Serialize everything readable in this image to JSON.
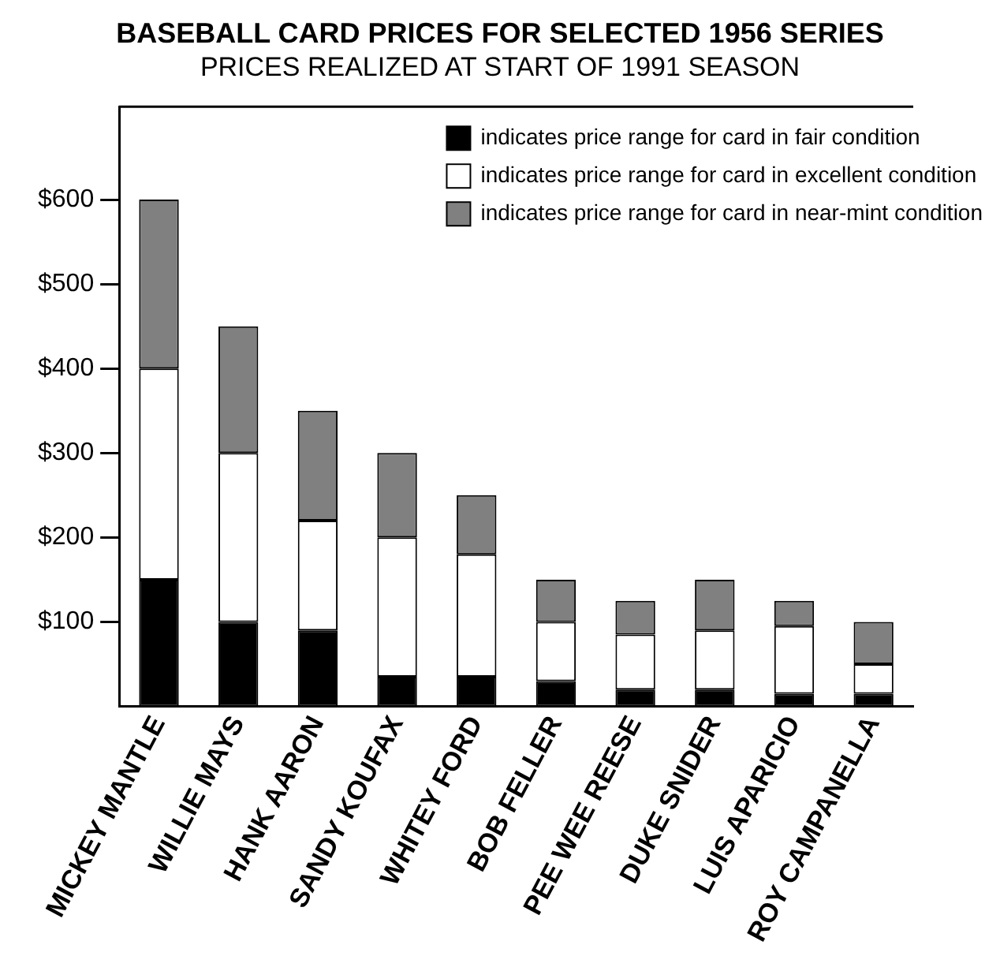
{
  "chart_data": {
    "type": "bar",
    "title": "BASEBALL CARD PRICES FOR SELECTED 1956 SERIES",
    "subtitle": "PRICES REALIZED AT START OF 1991 SEASON",
    "categories": [
      "MICKEY MANTLE",
      "WILLIE MAYS",
      "HANK AARON",
      "SANDY KOUFAX",
      "WHITEY FORD",
      "BOB FELLER",
      "PEE WEE REESE",
      "DUKE SNIDER",
      "LUIS APARICIO",
      "ROY CAMPANELLA"
    ],
    "stacked": true,
    "series": [
      {
        "name": "indicates price range for card in fair condition",
        "color": "#000000",
        "values": [
          150,
          100,
          90,
          35,
          35,
          30,
          20,
          20,
          15,
          15
        ]
      },
      {
        "name": "indicates price range for card in excellent condition",
        "color": "#ffffff",
        "values": [
          250,
          200,
          130,
          165,
          145,
          70,
          65,
          70,
          80,
          35
        ]
      },
      {
        "name": "indicates price range for card in near-mint condition",
        "color": "#808080",
        "values": [
          200,
          150,
          130,
          100,
          70,
          50,
          40,
          60,
          30,
          50
        ]
      }
    ],
    "ylim": [
      0,
      710
    ],
    "yticks": [
      {
        "value": 100,
        "label": "$100"
      },
      {
        "value": 200,
        "label": "$200"
      },
      {
        "value": 300,
        "label": "$300"
      },
      {
        "value": 400,
        "label": "$400"
      },
      {
        "value": 500,
        "label": "$500"
      },
      {
        "value": 600,
        "label": "$600"
      }
    ],
    "grid": false,
    "legend": "top right"
  }
}
